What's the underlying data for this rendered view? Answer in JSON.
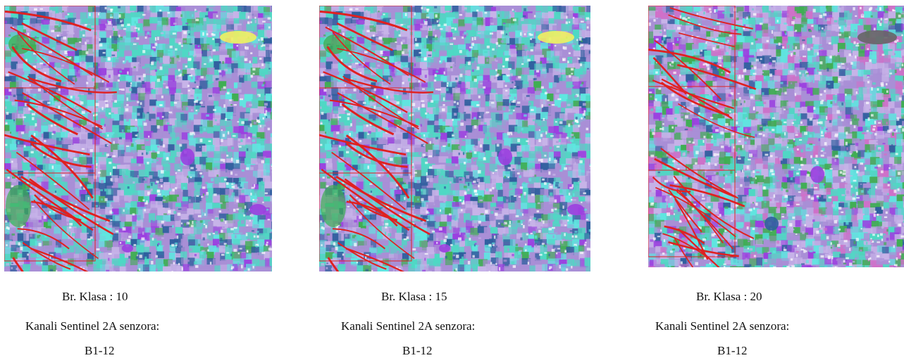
{
  "panels": [
    {
      "class_count_label": "Br. Klasa : 10",
      "bands_label": "Kanali Sentinel 2A senzora:",
      "bands_value": "B1-12"
    },
    {
      "class_count_label": "Br. Klasa : 15",
      "bands_label": "Kanali Sentinel 2A senzora:",
      "bands_value": "B1-12"
    },
    {
      "class_count_label": "Br. Klasa : 20",
      "bands_label": "Kanali Sentinel 2A senzora:",
      "bands_value": "B1-12"
    }
  ],
  "palette": {
    "purple": "#a98fd6",
    "light_purple": "#c7b3e8",
    "teal": "#4fd8c4",
    "cyan": "#5fe6e0",
    "green": "#3fae52",
    "dark_blue": "#2f5f9e",
    "violet": "#9b3fe0",
    "yellow": "#f0f060",
    "pink": "#d070c8",
    "fault_lines": "#e02020"
  }
}
